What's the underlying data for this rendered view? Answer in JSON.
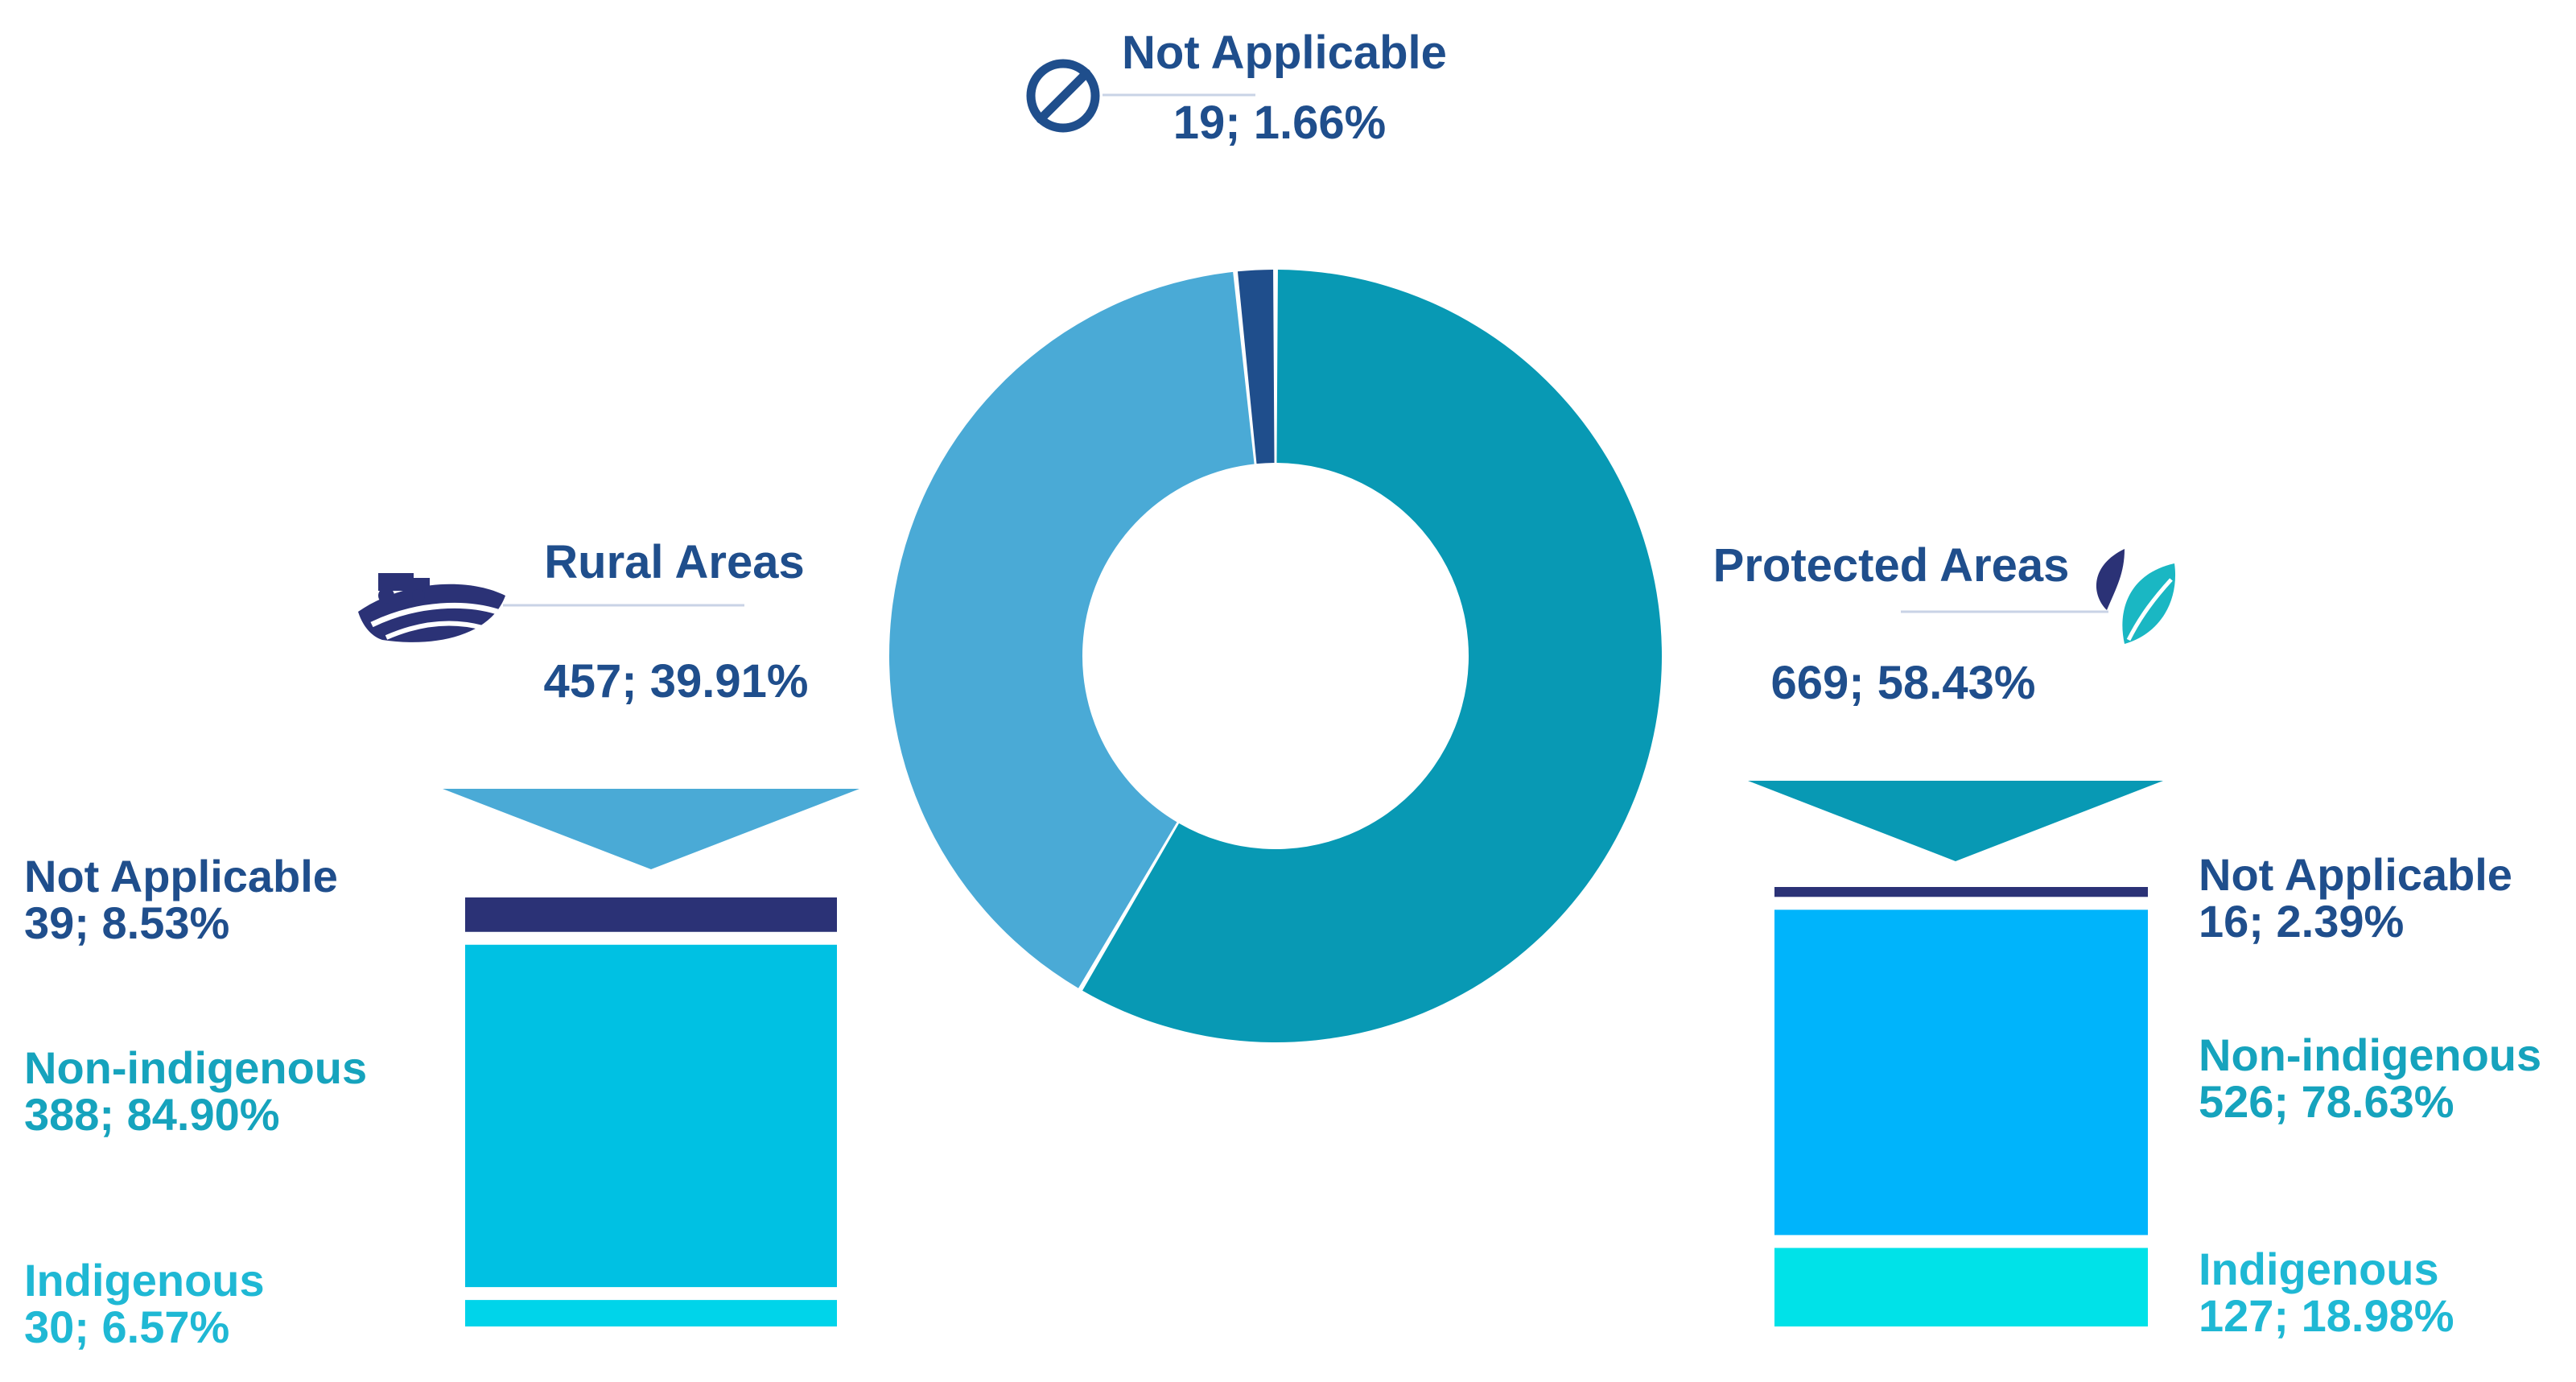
{
  "colors": {
    "navy": "#1f4e8c",
    "dark_navy": "#2b3276",
    "teal_text": "#16a3bd",
    "cyan_text": "#1fb8d4",
    "rule": "#c9d3e6",
    "protected_slice": "#0899b4",
    "rural_slice": "#4aaad6",
    "na_slice": "#1f4e8c",
    "rural_arrow": "#4aaad6",
    "protected_arrow": "#0899b4"
  },
  "chart_data": [
    {
      "type": "pie",
      "variant": "donut",
      "slices": [
        {
          "label": "Protected Areas",
          "count": 669,
          "percent": 58.43,
          "color": "#0899b4",
          "value_text": "669; 58.43%"
        },
        {
          "label": "Rural Areas",
          "count": 457,
          "percent": 39.91,
          "color": "#4aaad6",
          "value_text": "457; 39.91%"
        },
        {
          "label": "Not Applicable",
          "count": 19,
          "percent": 1.66,
          "color": "#1f4e8c",
          "value_text": "19; 1.66%"
        }
      ]
    },
    {
      "type": "bar",
      "variant": "stacked-column",
      "group": "Rural Areas",
      "segments": [
        {
          "label": "Not Applicable",
          "count": 39,
          "percent": 8.53,
          "color": "#2b3276",
          "value_text": "39; 8.53%"
        },
        {
          "label": "Non-indigenous",
          "count": 388,
          "percent": 84.9,
          "color": "#00c1e3",
          "value_text": "388; 84.90%"
        },
        {
          "label": "Indigenous",
          "count": 30,
          "percent": 6.57,
          "color": "#00d4ea",
          "value_text": "30; 6.57%"
        }
      ]
    },
    {
      "type": "bar",
      "variant": "stacked-column",
      "group": "Protected Areas",
      "segments": [
        {
          "label": "Not Applicable",
          "count": 16,
          "percent": 2.39,
          "color": "#2b3276",
          "value_text": "16; 2.39%"
        },
        {
          "label": "Non-indigenous",
          "count": 526,
          "percent": 78.63,
          "color": "#00b4fb",
          "value_text": "526; 78.63%"
        },
        {
          "label": "Indigenous",
          "count": 127,
          "percent": 18.98,
          "color": "#00e2e8",
          "value_text": "127; 18.98%"
        }
      ]
    }
  ],
  "icons": {
    "not_applicable": "prohibited-circle-icon",
    "rural": "farm-tractor-icon",
    "protected": "leaf-icon"
  }
}
